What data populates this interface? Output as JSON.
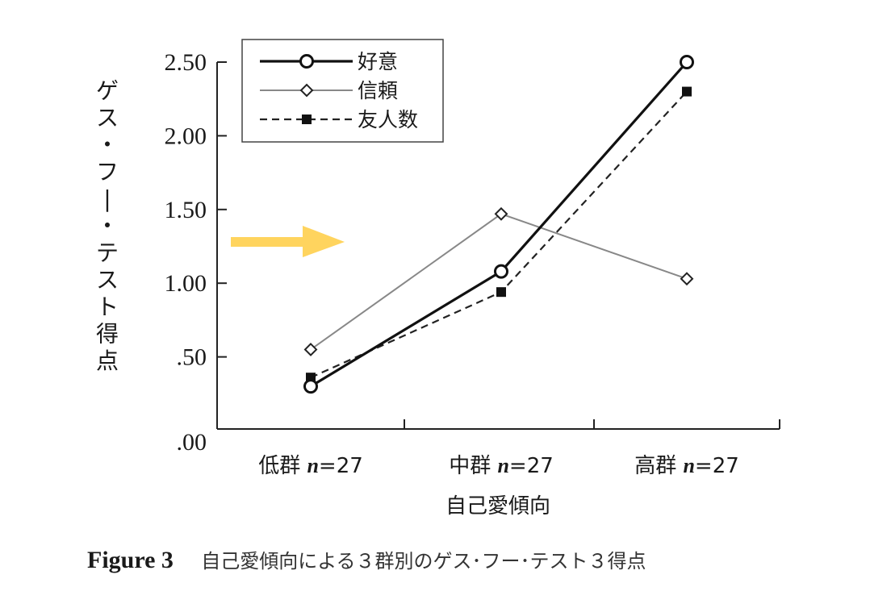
{
  "chart_data": {
    "type": "line",
    "title": "",
    "xlabel": "自己愛傾向",
    "ylabel": "ゲス・フー・テスト得点",
    "categories": [
      "低群 n=27",
      "中群 n=27",
      "高群 n=27"
    ],
    "category_parts": [
      {
        "group": "低群",
        "n": "n",
        "eq": "=27"
      },
      {
        "group": "中群",
        "n": "n",
        "eq": "=27"
      },
      {
        "group": "高群",
        "n": "n",
        "eq": "=27"
      }
    ],
    "yticks": [
      ".00",
      ".50",
      "1.00",
      "1.50",
      "2.00",
      "2.50"
    ],
    "ylim": [
      0,
      2.5
    ],
    "grid": false,
    "legend_position": "upper-left",
    "series": [
      {
        "name": "好意",
        "style": "solid-thick",
        "marker": "open-circle",
        "values": [
          0.3,
          1.08,
          2.5
        ]
      },
      {
        "name": "信頼",
        "style": "solid-thin-gray",
        "marker": "open-diamond",
        "values": [
          0.55,
          1.47,
          1.03
        ]
      },
      {
        "name": "友人数",
        "style": "dashed",
        "marker": "filled-square",
        "values": [
          0.36,
          0.94,
          2.3
        ]
      }
    ],
    "annotation": {
      "type": "arrow",
      "color": "#FFD45E",
      "points_to": "y-axis around 1.27"
    }
  },
  "caption": {
    "figure_label": "Figure 3",
    "text": "自己愛傾向による３群別のゲス･フー･テスト３得点"
  }
}
